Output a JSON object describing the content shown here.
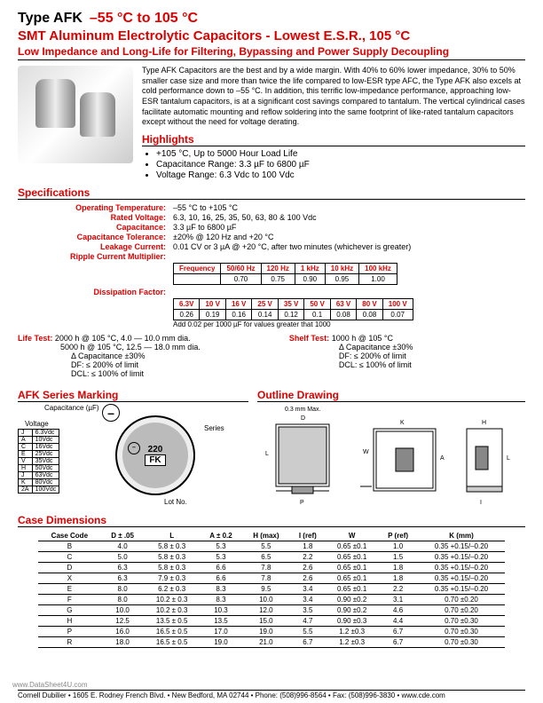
{
  "header": {
    "type": "Type AFK",
    "temp": "–55 °C to 105 °C",
    "subtitle": "SMT Aluminum Electrolytic Capacitors - Lowest E.S.R., 105 °C",
    "tagline": "Low Impedance and Long-Life for Filtering, Bypassing and Power Supply Decoupling"
  },
  "intro": "Type AFK Capacitors are the best and by a wide margin. With 40% to 60% lower impedance, 30% to 50% smaller case size and more than twice the life compared to low-ESR type AFC, the Type AFK also excels at cold performance down to –55 °C. In addition, this terrific low-impedance performance, approaching low-ESR tantalum capacitors, is at a significant cost savings compared to tantalum. The vertical cylindrical cases facilitate automatic mounting and reflow soldering into the same footprint of like-rated tantalum capacitors except without the need for voltage derating.",
  "highlights_hdr": "Highlights",
  "bullets": [
    "+105 °C, Up to 5000 Hour Load Life",
    "Capacitance Range: 3.3 µF to 6800 µF",
    "Voltage Range: 6.3 Vdc to 100 Vdc"
  ],
  "spec_hdr": "Specifications",
  "specs": {
    "op_temp_l": "Operating Temperature:",
    "op_temp_v": "–55 °C to +105 °C",
    "rated_v_l": "Rated Voltage:",
    "rated_v_v": "6.3, 10, 16, 25, 35, 50, 63, 80 & 100 Vdc",
    "cap_l": "Capacitance:",
    "cap_v": "3.3 µF to 6800 µF",
    "captol_l": "Capacitance Tolerance:",
    "captol_v": "±20% @ 120 Hz and +20 °C",
    "leak_l": "Leakage Current:",
    "leak_v": "0.01 CV or 3 µA @ +20 °C, after two minutes (whichever is greater)",
    "ripple_l": "Ripple Current Multiplier:",
    "diss_l": "Dissipation Factor:"
  },
  "freq_table": {
    "headers": [
      "Frequency",
      "50/60 Hz",
      "120 Hz",
      "1 kHz",
      "10 kHz",
      "100 kHz"
    ],
    "row": [
      "",
      "0.70",
      "0.75",
      "0.90",
      "0.95",
      "1.00"
    ]
  },
  "diss_table": {
    "headers": [
      "6.3V",
      "10 V",
      "16 V",
      "25 V",
      "35 V",
      "50 V",
      "63 V",
      "80 V",
      "100 V"
    ],
    "row": [
      "0.26",
      "0.19",
      "0.16",
      "0.14",
      "0.12",
      "0.1",
      "0.08",
      "0.08",
      "0.07"
    ]
  },
  "diss_note": "Add 0.02 per 1000 µF for   values greater that 1000",
  "life_test": {
    "label": "Life Test:",
    "l1": "2000 h @ 105 °C, 4.0 — 10.0 mm dia.",
    "l2": "5000 h @ 105 °C, 12.5 — 18.0 mm dia.",
    "l3": "Δ Capacitance ±30%",
    "l4": "DF:  ≤ 200% of limit",
    "l5": "DCL:  ≤ 100% of limit",
    "shelf_label": "Shelf Test:",
    "s1": "1000 h @ 105 °C",
    "s2": "Δ Capacitance ±30%",
    "s3": "DF:  ≤ 200% of limit",
    "s4": "DCL:  ≤ 100% of limit"
  },
  "marking_hdr": "AFK Series Marking",
  "outline_hdr": "Outline Drawing",
  "marking": {
    "cap_lbl": "Capacitance (µF)",
    "volt_lbl": "Voltage",
    "series_lbl": "Series",
    "lot_lbl": "Lot No.",
    "val": "220",
    "fk": "FK",
    "vtable": [
      [
        "J",
        "6.3Vdc"
      ],
      [
        "A",
        "10Vdc"
      ],
      [
        "C",
        "16Vdc"
      ],
      [
        "E",
        "25Vdc"
      ],
      [
        "V",
        "35Vdc"
      ],
      [
        "H",
        "50Vdc"
      ],
      [
        "J",
        "63Vdc"
      ],
      [
        "K",
        "80Vdc"
      ],
      [
        "2A",
        "100Vdc"
      ]
    ]
  },
  "outline": {
    "maxlabel": "0.3 mm Max."
  },
  "case_hdr": "Case Dimensions",
  "case_table": {
    "headers": [
      "Case Code",
      "D ± .05",
      "L",
      "A ± 0.2",
      "H (max)",
      "I (ref)",
      "W",
      "P (ref)",
      "K (mm)"
    ],
    "rows": [
      [
        "B",
        "4.0",
        "5.8 ± 0.3",
        "5.3",
        "5.5",
        "1.8",
        "0.65 ±0.1",
        "1.0",
        "0.35 +0.15/–0.20"
      ],
      [
        "C",
        "5.0",
        "5.8 ± 0.3",
        "5.3",
        "6.5",
        "2.2",
        "0.65 ±0.1",
        "1.5",
        "0.35 +0.15/–0.20"
      ],
      [
        "D",
        "6.3",
        "5.8 ± 0.3",
        "6.6",
        "7.8",
        "2.6",
        "0.65 ±0.1",
        "1.8",
        "0.35 +0.15/–0.20"
      ],
      [
        "X",
        "6.3",
        "7.9 ± 0.3",
        "6.6",
        "7.8",
        "2.6",
        "0.65 ±0.1",
        "1.8",
        "0.35 +0.15/–0.20"
      ],
      [
        "E",
        "8.0",
        "6.2 ± 0.3",
        "8.3",
        "9.5",
        "3.4",
        "0.65 ±0.1",
        "2.2",
        "0.35 +0.15/–0.20"
      ],
      [
        "F",
        "8.0",
        "10.2 ± 0.3",
        "8.3",
        "10.0",
        "3.4",
        "0.90 ±0.2",
        "3.1",
        "0.70 ±0.20"
      ],
      [
        "G",
        "10.0",
        "10.2 ± 0.3",
        "10.3",
        "12.0",
        "3.5",
        "0.90 ±0.2",
        "4.6",
        "0.70 ±0.20"
      ],
      [
        "H",
        "12.5",
        "13.5 ± 0.5",
        "13.5",
        "15.0",
        "4.7",
        "0.90 ±0.3",
        "4.4",
        "0.70 ±0.30"
      ],
      [
        "P",
        "16.0",
        "16.5 ± 0.5",
        "17.0",
        "19.0",
        "5.5",
        "1.2 ±0.3",
        "6.7",
        "0.70 ±0.30"
      ],
      [
        "R",
        "18.0",
        "16.5 ± 0.5",
        "19.0",
        "21.0",
        "6.7",
        "1.2 ±0.3",
        "6.7",
        "0.70 ±0.30"
      ]
    ]
  },
  "watermark": "www.DataSheet4U.com",
  "footer": "Cornell Dubilier • 1605 E. Rodney French Blvd. • New Bedford, MA 02744 • Phone: (508)996-8564 • Fax: (508)996-3830 • www.cde.com"
}
